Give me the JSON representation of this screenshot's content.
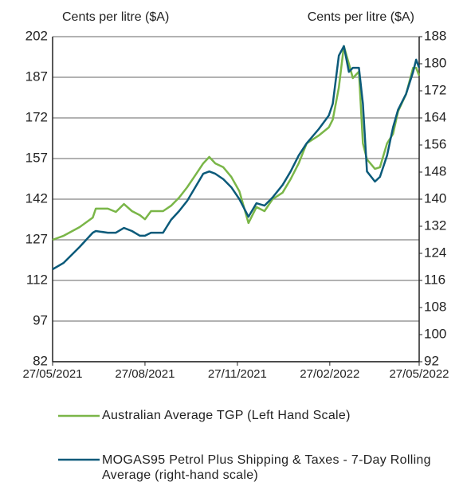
{
  "chart_data": {
    "type": "line",
    "y_label": "Cents per litre ($A)",
    "y2_label": "Cents per litre ($A)",
    "x": [
      "2021-05-27",
      "2021-06-07",
      "2021-06-23",
      "2021-07-06",
      "2021-07-09",
      "2021-07-21",
      "2021-07-29",
      "2021-08-06",
      "2021-08-14",
      "2021-08-22",
      "2021-08-27",
      "2021-09-02",
      "2021-09-14",
      "2021-09-22",
      "2021-09-30",
      "2021-10-08",
      "2021-10-16",
      "2021-10-24",
      "2021-10-30",
      "2021-11-05",
      "2021-11-13",
      "2021-11-21",
      "2021-11-29",
      "2021-12-08",
      "2021-12-16",
      "2021-12-24",
      "2022-01-01",
      "2022-01-11",
      "2022-01-19",
      "2022-01-27",
      "2022-02-04",
      "2022-02-16",
      "2022-02-26",
      "2022-03-02",
      "2022-03-08",
      "2022-03-13",
      "2022-03-18",
      "2022-03-22",
      "2022-03-28",
      "2022-04-01",
      "2022-04-05",
      "2022-04-13",
      "2022-04-18",
      "2022-04-25",
      "2022-05-01",
      "2022-05-06",
      "2022-05-14",
      "2022-05-21",
      "2022-05-24",
      "2022-05-27"
    ],
    "series": [
      {
        "name": "Australian Average TGP (Left Hand Scale)",
        "color": "#7ab648",
        "axis": "y",
        "values": [
          127,
          128.5,
          131.7,
          135.2,
          138.5,
          138.5,
          137.3,
          140.2,
          137.6,
          136.1,
          134.6,
          137.6,
          137.6,
          139.6,
          142.6,
          146.4,
          150.8,
          155.2,
          157.6,
          155.2,
          153.8,
          150.2,
          144.9,
          133.2,
          139.1,
          137.6,
          142,
          144.4,
          149.4,
          155.2,
          162.6,
          165.5,
          168.5,
          171.4,
          183.2,
          198.5,
          192,
          186.7,
          189.1,
          162.6,
          156.7,
          153.2,
          153.8,
          162.6,
          166.1,
          174.4,
          180.8,
          190.5,
          190.5,
          187.6
        ]
      },
      {
        "name": "MOGAS95 Petrol Plus Shipping & Taxes - 7-Day Rolling Average (right-hand scale)",
        "color": "#0b5a7a",
        "axis": "y2",
        "values": [
          119.3,
          121.2,
          125.9,
          130.1,
          130.6,
          130.1,
          130.1,
          131.5,
          130.6,
          129.2,
          129.2,
          130.1,
          130.1,
          133.9,
          136.5,
          139.5,
          143.5,
          147.5,
          148.2,
          147.5,
          145.9,
          143.5,
          140,
          134.8,
          138.8,
          138.1,
          140.5,
          144.2,
          148.2,
          152.9,
          156.5,
          160.7,
          164.7,
          168.2,
          182.4,
          185.2,
          177.6,
          178.8,
          178.8,
          168.2,
          148.2,
          145.2,
          146.6,
          152.9,
          161.2,
          166.4,
          171.1,
          177.6,
          181.2,
          178.8
        ]
      }
    ],
    "xlim": [
      "2021-05-27",
      "2022-05-27"
    ],
    "xticks": [
      {
        "value": "2021-05-27",
        "label": "27/05/2021"
      },
      {
        "value": "2021-08-27",
        "label": "27/08/2021"
      },
      {
        "value": "2021-11-27",
        "label": "27/11/2021"
      },
      {
        "value": "2022-02-27",
        "label": "27/02/2022"
      },
      {
        "value": "2022-05-27",
        "label": "27/05/2022"
      }
    ],
    "ylim": [
      82,
      202
    ],
    "yticks": [
      82,
      97,
      112,
      127,
      142,
      157,
      172,
      187,
      202
    ],
    "y2lim": [
      92,
      188
    ],
    "y2ticks": [
      92,
      100,
      108,
      116,
      124,
      132,
      140,
      148,
      156,
      164,
      172,
      180,
      188
    ],
    "grid": true
  }
}
